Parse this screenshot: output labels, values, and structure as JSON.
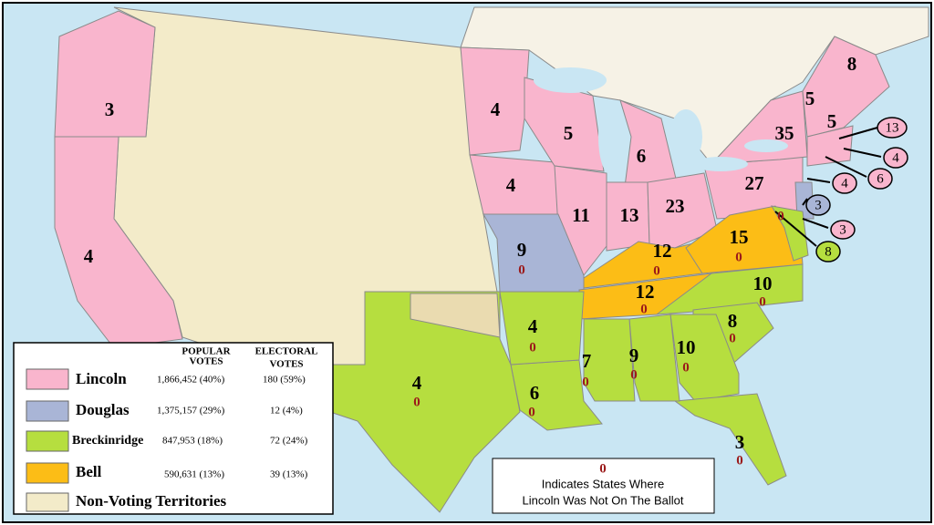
{
  "electoral_labels": [
    3,
    4,
    4,
    5,
    6,
    4,
    11,
    13,
    23,
    27,
    35,
    5,
    5,
    8,
    9,
    12,
    15,
    12,
    10,
    8,
    10,
    9,
    7,
    4,
    6,
    4,
    3,
    13,
    4,
    6,
    4,
    3,
    3,
    8
  ],
  "not_on_ballot_mark": "0",
  "legend": {
    "header_popular": [
      "POPULAR",
      "VOTES"
    ],
    "header_electoral": [
      "ELECTORAL",
      "VOTES"
    ],
    "rows": [
      {
        "candidate": "Lincoln",
        "popular_votes": "1,866,452 (40%)",
        "electoral_votes": "180 (59%)"
      },
      {
        "candidate": "Douglas",
        "popular_votes": "1,375,157 (29%)",
        "electoral_votes": "12 (4%)"
      },
      {
        "candidate": "Breckinridge",
        "popular_votes": "847,953 (18%)",
        "electoral_votes": "72 (24%)"
      },
      {
        "candidate": "Bell",
        "popular_votes": "590,631 (13%)",
        "electoral_votes": "39 (13%)"
      },
      {
        "candidate": "Non-Voting Territories"
      }
    ]
  },
  "note": {
    "symbol": "0",
    "lines": [
      "Indicates States Where",
      "Lincoln Was Not On The Ballot"
    ]
  }
}
